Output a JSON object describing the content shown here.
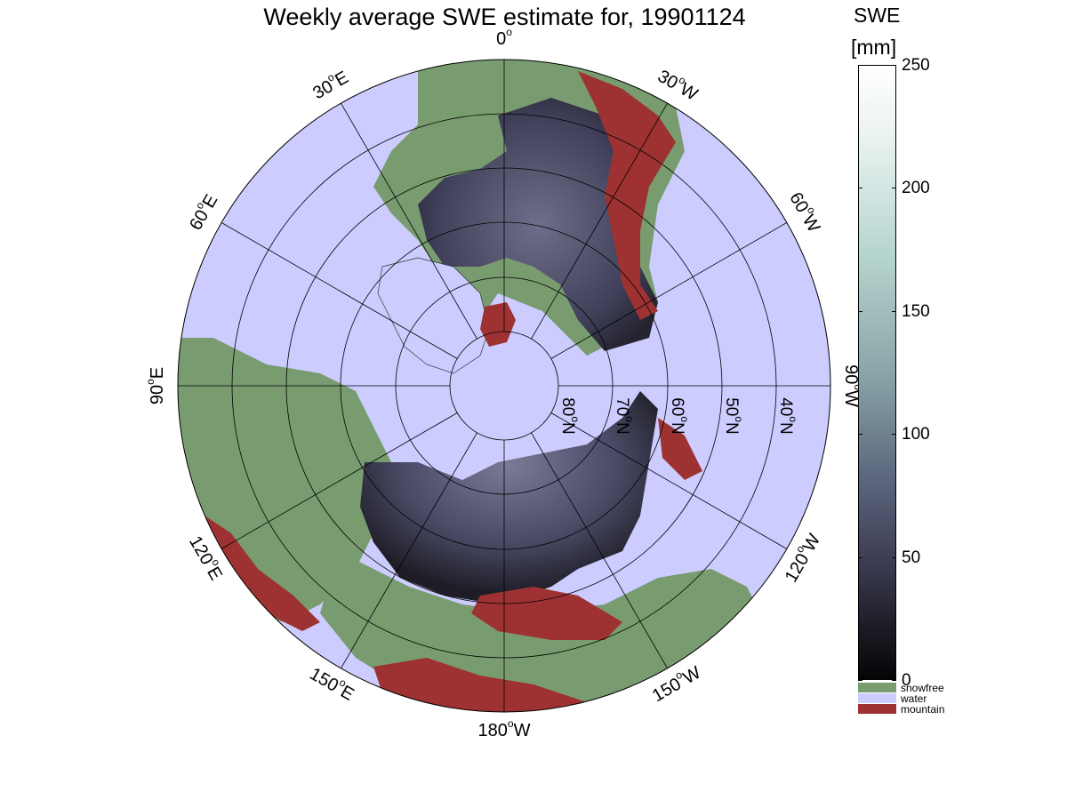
{
  "title": "Weekly average SWE estimate for, 19901124",
  "colorbar": {
    "title_line1": "SWE",
    "title_line2": "[mm]",
    "ticks": [
      {
        "value": 250,
        "label": "250"
      },
      {
        "value": 200,
        "label": "200"
      },
      {
        "value": 150,
        "label": "150"
      },
      {
        "value": 100,
        "label": "100"
      },
      {
        "value": 50,
        "label": "50"
      },
      {
        "value": 0,
        "label": "0"
      }
    ],
    "range": [
      0,
      250
    ],
    "categories": [
      {
        "label": "snowfree",
        "color": "#789c6f"
      },
      {
        "label": "water",
        "color": "#ccccff"
      },
      {
        "label": "mountain",
        "color": "#9e3232"
      }
    ]
  },
  "map": {
    "projection": "north polar stereographic",
    "longitude_labels": [
      {
        "lon": 90,
        "text": "90°W",
        "prefix": "90",
        "suffix": "W"
      },
      {
        "lon": 120,
        "text": "120°W",
        "prefix": "120",
        "suffix": "W"
      },
      {
        "lon": 150,
        "text": "150°W",
        "prefix": "150",
        "suffix": "W"
      },
      {
        "lon": 180,
        "text": "180°W",
        "prefix": "180",
        "suffix": "W"
      },
      {
        "lon": 210,
        "text": "150°E",
        "prefix": "150",
        "suffix": "E"
      },
      {
        "lon": 240,
        "text": "120°E",
        "prefix": "120",
        "suffix": "E"
      },
      {
        "lon": 270,
        "text": "90°E",
        "prefix": "90",
        "suffix": "E"
      },
      {
        "lon": 300,
        "text": "60°E",
        "prefix": "60",
        "suffix": "E"
      },
      {
        "lon": 330,
        "text": "30°E",
        "prefix": "30",
        "suffix": "E"
      },
      {
        "lon": 0,
        "text": "0°",
        "prefix": "0",
        "suffix": ""
      },
      {
        "lon": 30,
        "text": "30°W",
        "prefix": "30",
        "suffix": "W"
      },
      {
        "lon": 60,
        "text": "60°W",
        "prefix": "60",
        "suffix": "W"
      }
    ],
    "latitude_labels": [
      {
        "lat": 80,
        "text": "80°N",
        "prefix": "80",
        "suffix": "N"
      },
      {
        "lat": 70,
        "text": "70°N",
        "prefix": "70",
        "suffix": "N"
      },
      {
        "lat": 60,
        "text": "60°N",
        "prefix": "60",
        "suffix": "N"
      },
      {
        "lat": 50,
        "text": "50°N",
        "prefix": "50",
        "suffix": "N"
      },
      {
        "lat": 40,
        "text": "40°N",
        "prefix": "40",
        "suffix": "N"
      }
    ],
    "colors": {
      "water": "#ccccff",
      "snowfree": "#789c6f",
      "mountain": "#9e3232",
      "snow_dark": "#1e1d26",
      "snow_mid": "#4a4a66",
      "snow_light": "#7a7a96"
    }
  }
}
